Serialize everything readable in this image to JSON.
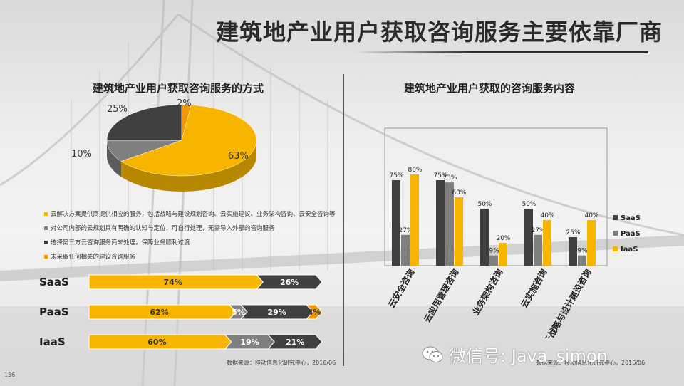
{
  "page": {
    "title": "建筑地产业用户获取咨询服务主要依靠厂商",
    "page_number": "156",
    "watermark": "微信号: Java_simon"
  },
  "colors": {
    "yellow": "#F7B500",
    "dark": "#404040",
    "gray": "#7f7f7f",
    "orange": "#F39800"
  },
  "pie_section": {
    "title": "建筑地产业用户获取咨询服务的方式",
    "legend": [
      {
        "text": "云解决方案提供商提供相应的服务，包括战略与建设规划咨询、云实施建议、业务架构咨询、云安全咨询等",
        "color": "#F7B500"
      },
      {
        "text": "对公司内部的云规划具有明确的认知与定位，可自行处理，无需导入外部的咨询服务",
        "color": "#7f7f7f"
      },
      {
        "text": "选择第三方云咨询服务商来处理，保障业务顺利过渡",
        "color": "#404040"
      },
      {
        "text": "未采取任何相关的建设咨询服务",
        "color": "#F39800"
      }
    ]
  },
  "stack_section": {
    "source": "数据来源：移动信息化研究中心，2016/06"
  },
  "bar_section": {
    "title": "建筑地产业用户获取的咨询服务内容",
    "source": "数据来源：移动信息化研究中心，2016/06"
  },
  "chart_data": [
    {
      "type": "pie",
      "labels": [
        "云解决方案提供商",
        "自行处理",
        "第三方云咨询服务商",
        "未采取"
      ],
      "values": [
        63,
        10,
        25,
        2
      ],
      "value_labels": [
        "63%",
        "10%",
        "25%",
        "2%"
      ]
    },
    {
      "type": "bar",
      "orientation": "horizontal-stacked",
      "categories": [
        "SaaS",
        "PaaS",
        "IaaS"
      ],
      "series": [
        {
          "values": [
            74,
            62,
            60
          ],
          "labels": [
            "74%",
            "62%",
            "60%"
          ]
        },
        {
          "values": [
            0,
            5,
            19
          ],
          "labels": [
            "",
            "5%",
            "19%"
          ]
        },
        {
          "values": [
            26,
            29,
            21
          ],
          "labels": [
            "26%",
            "29%",
            "21%"
          ]
        },
        {
          "values": [
            0,
            4,
            0
          ],
          "labels": [
            "",
            "4%",
            ""
          ]
        }
      ]
    },
    {
      "type": "bar",
      "categories": [
        "云安全咨询",
        "云应用管理咨询",
        "业务架构咨询",
        "云实施咨询",
        "云战略与设计建设咨询"
      ],
      "series": [
        {
          "name": "SaaS",
          "values": [
            75,
            75,
            50,
            50,
            25
          ],
          "labels": [
            "75%",
            "75%",
            "50%",
            "50%",
            "25%"
          ]
        },
        {
          "name": "PaaS",
          "values": [
            27,
            73,
            9,
            27,
            9
          ],
          "labels": [
            "27%",
            "73%",
            "9%",
            "27%",
            "9%"
          ]
        },
        {
          "name": "IaaS",
          "values": [
            80,
            60,
            20,
            40,
            40
          ],
          "labels": [
            "80%",
            "60%",
            "20%",
            "40%",
            "40%"
          ]
        }
      ],
      "ylim": [
        0,
        100
      ],
      "legend_position": "right"
    }
  ]
}
